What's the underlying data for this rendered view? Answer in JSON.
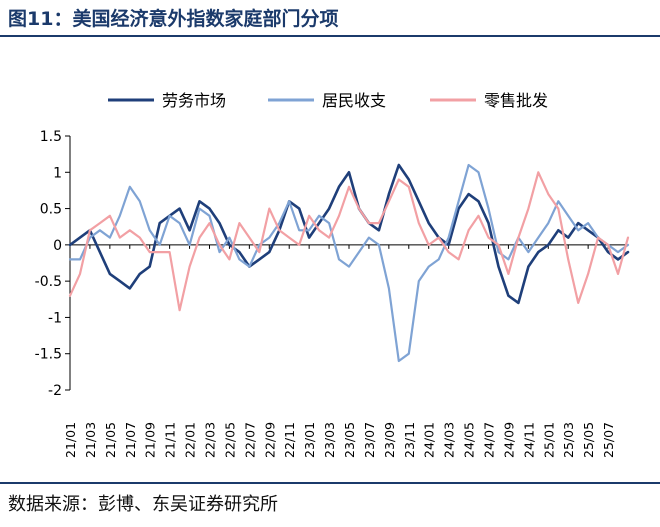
{
  "header": {
    "title": "图11：美国经济意外指数家庭部门分项"
  },
  "footer": {
    "source": "数据来源：彭博、东吴证券研究所"
  },
  "colors": {
    "rule": "#1b3a6b",
    "labor": "#1f3f7a",
    "income": "#7fa3d4",
    "retail": "#f2a0a4"
  },
  "chart_data": {
    "type": "line",
    "title": "",
    "xlabel": "",
    "ylabel": "",
    "ylim": [
      -2,
      1.5
    ],
    "yticks": [
      1.5,
      1,
      0.5,
      0,
      -0.5,
      -1,
      -1.5,
      -2
    ],
    "ytick_labels": [
      "1.5",
      "1",
      "0.5",
      "0",
      "-0.5",
      "-1",
      "-1.5",
      "-2"
    ],
    "legend_position": "top",
    "grid": false,
    "x_ticks": [
      "21/01",
      "21/03",
      "21/05",
      "21/07",
      "21/09",
      "21/11",
      "22/01",
      "22/03",
      "22/05",
      "22/07",
      "22/09",
      "22/11",
      "23/01",
      "23/03",
      "23/05",
      "23/07",
      "23/09",
      "23/11",
      "24/01",
      "24/03",
      "24/05",
      "24/07",
      "24/09",
      "24/11",
      "25/01",
      "25/03",
      "25/05",
      "25/07"
    ],
    "x_range": [
      0,
      56
    ],
    "x_unit": "half-month periods from 2021/01",
    "series": [
      {
        "name": "劳务市场",
        "color": "#1f3f7a",
        "values": [
          0.0,
          0.1,
          0.2,
          -0.1,
          -0.4,
          -0.5,
          -0.6,
          -0.4,
          -0.3,
          0.3,
          0.4,
          0.5,
          0.2,
          0.6,
          0.5,
          0.3,
          0.0,
          -0.1,
          -0.3,
          -0.2,
          -0.1,
          0.2,
          0.6,
          0.5,
          0.1,
          0.3,
          0.5,
          0.8,
          1.0,
          0.5,
          0.3,
          0.2,
          0.7,
          1.1,
          0.9,
          0.6,
          0.3,
          0.1,
          0.0,
          0.5,
          0.7,
          0.6,
          0.3,
          -0.3,
          -0.7,
          -0.8,
          -0.3,
          -0.1,
          0.0,
          0.2,
          0.1,
          0.3,
          0.2,
          0.1,
          -0.1,
          -0.2,
          -0.1
        ]
      },
      {
        "name": "居民收支",
        "color": "#7fa3d4",
        "values": [
          -0.2,
          -0.2,
          0.1,
          0.2,
          0.1,
          0.4,
          0.8,
          0.6,
          0.2,
          0.0,
          0.4,
          0.3,
          0.0,
          0.5,
          0.4,
          -0.1,
          0.1,
          -0.2,
          -0.3,
          0.0,
          0.1,
          0.3,
          0.6,
          0.2,
          0.2,
          0.4,
          0.3,
          -0.2,
          -0.3,
          -0.1,
          0.1,
          0.0,
          -0.6,
          -1.6,
          -1.5,
          -0.5,
          -0.3,
          -0.2,
          0.1,
          0.6,
          1.1,
          1.0,
          0.5,
          -0.1,
          -0.2,
          0.1,
          -0.1,
          0.1,
          0.3,
          0.6,
          0.4,
          0.2,
          0.3,
          0.1,
          0.0,
          -0.1,
          0.0
        ]
      },
      {
        "name": "零售批发",
        "color": "#f2a0a4",
        "values": [
          -0.7,
          -0.4,
          0.2,
          0.3,
          0.4,
          0.1,
          0.2,
          0.1,
          -0.1,
          -0.1,
          -0.1,
          -0.9,
          -0.3,
          0.1,
          0.3,
          0.0,
          -0.2,
          0.3,
          0.1,
          -0.1,
          0.5,
          0.2,
          0.1,
          0.0,
          0.4,
          0.2,
          0.1,
          0.4,
          0.8,
          0.5,
          0.3,
          0.3,
          0.6,
          0.9,
          0.8,
          0.3,
          0.0,
          0.1,
          -0.1,
          -0.2,
          0.2,
          0.4,
          0.1,
          0.0,
          -0.4,
          0.1,
          0.5,
          1.0,
          0.7,
          0.5,
          -0.2,
          -0.8,
          -0.4,
          0.1,
          0.0,
          -0.4,
          0.1
        ]
      }
    ]
  }
}
